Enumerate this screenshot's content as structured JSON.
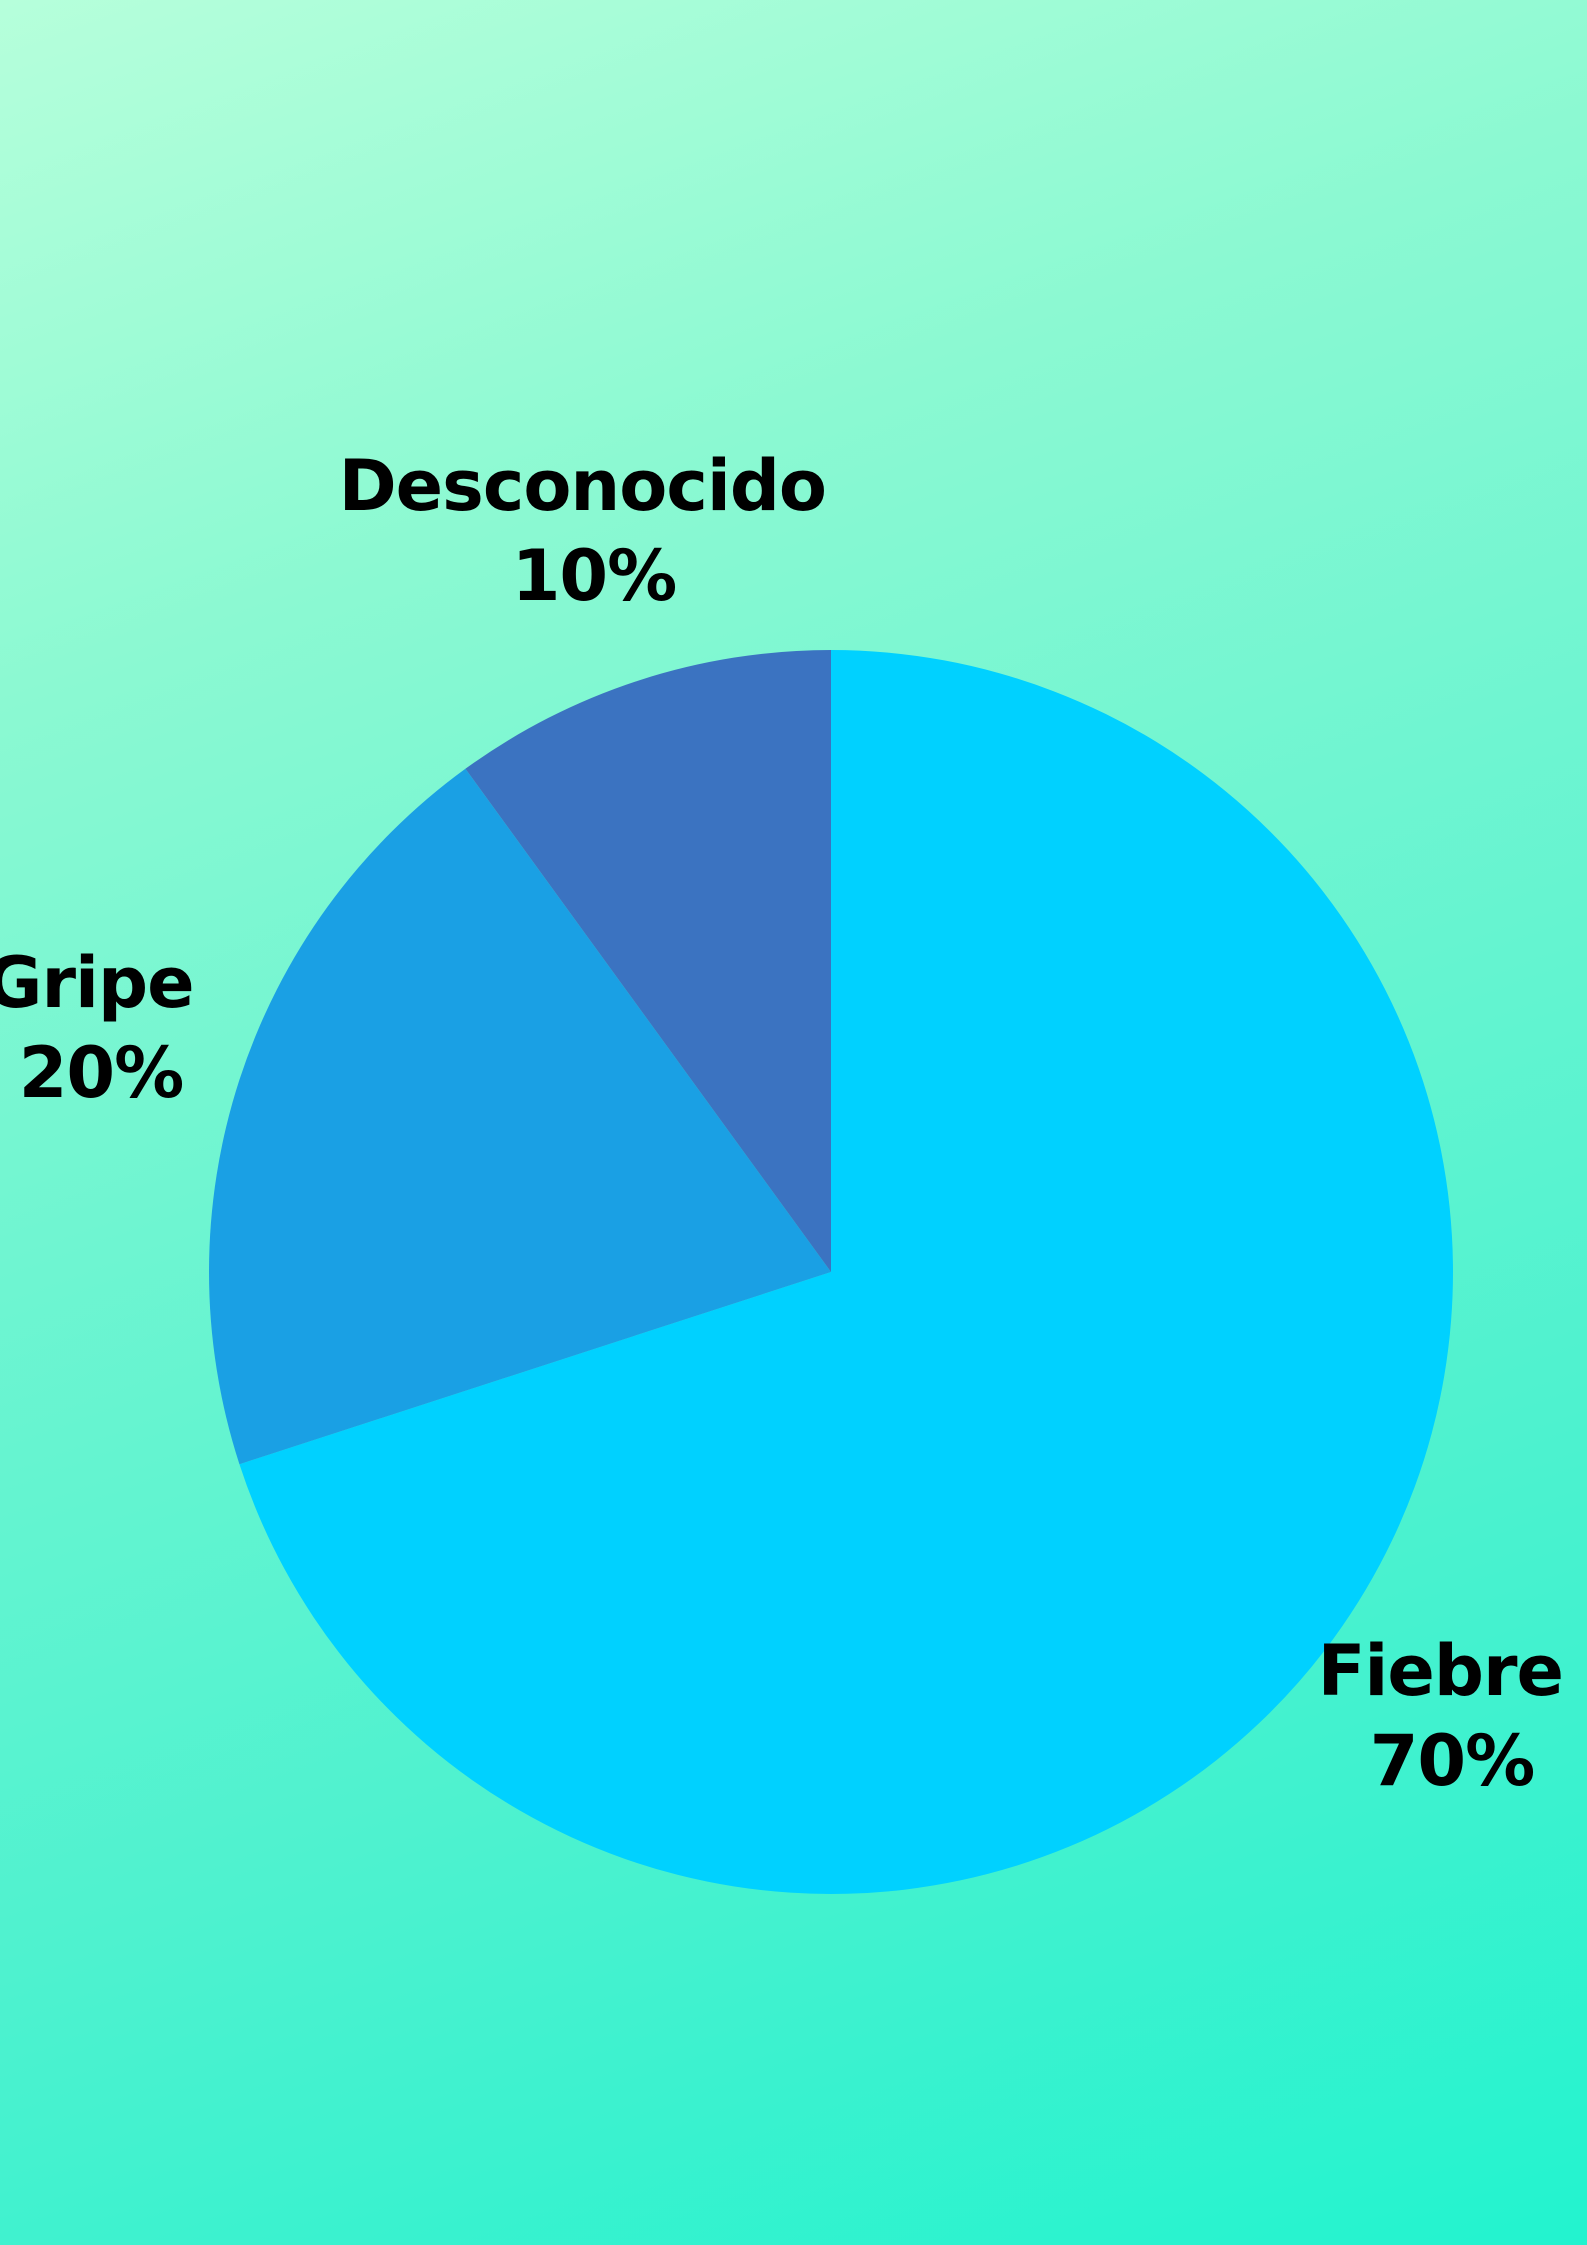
{
  "chart_data": {
    "type": "pie",
    "title": "",
    "start_angle_deg": 0,
    "direction": "clockwise",
    "slices": [
      {
        "label": "Fiebre",
        "value": 70,
        "value_label": "70%",
        "color": "#00d1ff"
      },
      {
        "label": "Gripe",
        "value": 20,
        "value_label": "20%",
        "color": "#1aa0e4"
      },
      {
        "label": "Desconocido",
        "value": 10,
        "value_label": "10%",
        "color": "#3b73c1"
      }
    ]
  }
}
